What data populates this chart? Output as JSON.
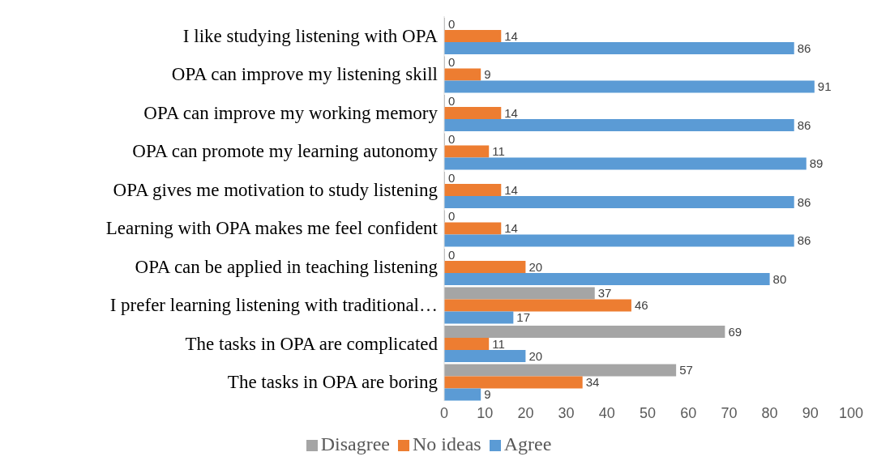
{
  "chart_data": {
    "type": "bar",
    "orientation": "horizontal",
    "categories": [
      "I like studying listening with OPA",
      "OPA can improve my listening skill",
      "OPA can improve my working memory",
      "OPA can promote my learning autonomy",
      "OPA gives me motivation to study listening",
      "Learning with OPA makes me feel confident",
      "OPA can be applied in teaching listening",
      "I prefer learning listening with traditional…",
      "The tasks in OPA are complicated",
      "The tasks in OPA are boring"
    ],
    "series": [
      {
        "name": "Disagree",
        "color": "#a5a5a5",
        "values": [
          0,
          0,
          0,
          0,
          0,
          0,
          0,
          37,
          69,
          57
        ]
      },
      {
        "name": "No ideas",
        "color": "#ed7d31",
        "values": [
          14,
          9,
          14,
          11,
          14,
          14,
          20,
          46,
          11,
          34
        ]
      },
      {
        "name": "Agree",
        "color": "#5b9bd5",
        "values": [
          86,
          91,
          86,
          89,
          86,
          86,
          80,
          17,
          20,
          9
        ]
      }
    ],
    "xlim": [
      0,
      100
    ],
    "xticks": [
      0,
      10,
      20,
      30,
      40,
      50,
      60,
      70,
      80,
      90,
      100
    ],
    "legend": "bottom",
    "data_labels": true
  }
}
